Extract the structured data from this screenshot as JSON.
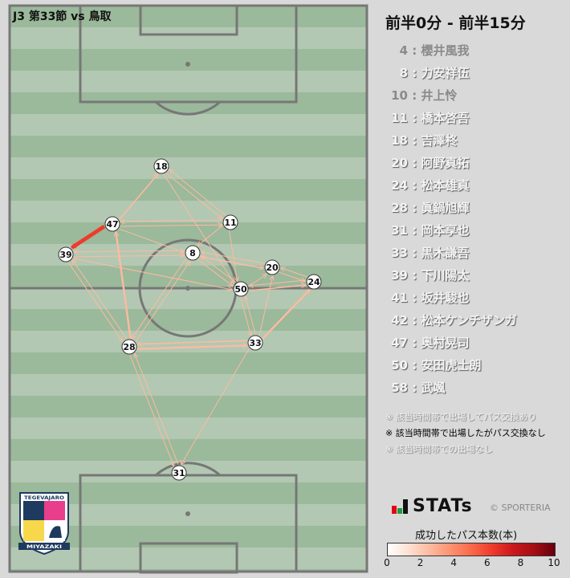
{
  "title": "J3 第33節 vs 鳥取",
  "period": "前半0分 - 前半15分",
  "players": [
    {
      "num": "4",
      "name": "櫻井風我",
      "status": "off"
    },
    {
      "num": "8",
      "name": "力安祥伍",
      "status": "on"
    },
    {
      "num": "10",
      "name": "井上怜",
      "status": "off"
    },
    {
      "num": "11",
      "name": "橋本啓吾",
      "status": "on"
    },
    {
      "num": "18",
      "name": "吉澤柊",
      "status": "on"
    },
    {
      "num": "20",
      "name": "阿野真拓",
      "status": "on"
    },
    {
      "num": "24",
      "name": "松本雄真",
      "status": "on"
    },
    {
      "num": "28",
      "name": "眞鍋旭輝",
      "status": "on"
    },
    {
      "num": "31",
      "name": "岡本享也",
      "status": "on"
    },
    {
      "num": "33",
      "name": "黒木謙吾",
      "status": "on"
    },
    {
      "num": "39",
      "name": "下川陽太",
      "status": "on"
    },
    {
      "num": "41",
      "name": "坂井駿也",
      "status": "on"
    },
    {
      "num": "42",
      "name": "松本ケンチザンガ",
      "status": "on"
    },
    {
      "num": "47",
      "name": "奥村晃司",
      "status": "on"
    },
    {
      "num": "50",
      "name": "安田虎士朗",
      "status": "on"
    },
    {
      "num": "58",
      "name": "武颯",
      "status": "on"
    }
  ],
  "notes": [
    "※ 該当時間帯で出場してパス交換あり",
    "※ 該当時間帯で出場したがパス交換なし",
    "※ 該当時間帯での出場なし"
  ],
  "brand": "STATs",
  "copyright": "© SPORTERIA",
  "colorbar": {
    "title": "成功したパス本数(本)",
    "ticks": [
      "0",
      "2",
      "4",
      "6",
      "8",
      "10"
    ],
    "min": 0,
    "max": 10
  },
  "crest_text": [
    "TEGEVAJARO",
    "MIYAZAKI"
  ],
  "nodes": [
    {
      "id": "18"
    },
    {
      "id": "47"
    },
    {
      "id": "11"
    },
    {
      "id": "39"
    },
    {
      "id": "8"
    },
    {
      "id": "20"
    },
    {
      "id": "50"
    },
    {
      "id": "24"
    },
    {
      "id": "28"
    },
    {
      "id": "33"
    },
    {
      "id": "31"
    }
  ],
  "passes": [
    {
      "from": "47",
      "to": "39",
      "count": 6
    },
    {
      "from": "28",
      "to": "47",
      "count": 3
    },
    {
      "from": "47",
      "to": "18",
      "count": 2
    },
    {
      "from": "28",
      "to": "33",
      "count": 3
    },
    {
      "from": "33",
      "to": "28",
      "count": 2
    },
    {
      "from": "33",
      "to": "24",
      "count": 3
    },
    {
      "from": "50",
      "to": "24",
      "count": 2
    },
    {
      "from": "24",
      "to": "50",
      "count": 1
    },
    {
      "from": "18",
      "to": "11",
      "count": 1
    },
    {
      "from": "11",
      "to": "18",
      "count": 1
    },
    {
      "from": "39",
      "to": "28",
      "count": 1
    },
    {
      "from": "28",
      "to": "39",
      "count": 1
    },
    {
      "from": "8",
      "to": "28",
      "count": 1
    },
    {
      "from": "8",
      "to": "20",
      "count": 2
    },
    {
      "from": "20",
      "to": "8",
      "count": 1
    },
    {
      "from": "50",
      "to": "8",
      "count": 1
    },
    {
      "from": "8",
      "to": "50",
      "count": 1
    },
    {
      "from": "47",
      "to": "11",
      "count": 1
    },
    {
      "from": "11",
      "to": "47",
      "count": 1
    },
    {
      "from": "39",
      "to": "8",
      "count": 1
    },
    {
      "from": "8",
      "to": "39",
      "count": 1
    },
    {
      "from": "20",
      "to": "24",
      "count": 1
    },
    {
      "from": "24",
      "to": "20",
      "count": 1
    },
    {
      "from": "50",
      "to": "20",
      "count": 1
    },
    {
      "from": "11",
      "to": "50",
      "count": 1
    },
    {
      "from": "33",
      "to": "50",
      "count": 1
    },
    {
      "from": "50",
      "to": "33",
      "count": 1
    },
    {
      "from": "33",
      "to": "20",
      "count": 1
    },
    {
      "from": "31",
      "to": "28",
      "count": 1
    },
    {
      "from": "28",
      "to": "31",
      "count": 1
    },
    {
      "from": "33",
      "to": "31",
      "count": 1
    },
    {
      "from": "18",
      "to": "50",
      "count": 1
    },
    {
      "from": "39",
      "to": "50",
      "count": 1
    },
    {
      "from": "11",
      "to": "8",
      "count": 1
    },
    {
      "from": "47",
      "to": "8",
      "count": 1
    },
    {
      "from": "28",
      "to": "8",
      "count": 1
    }
  ]
}
